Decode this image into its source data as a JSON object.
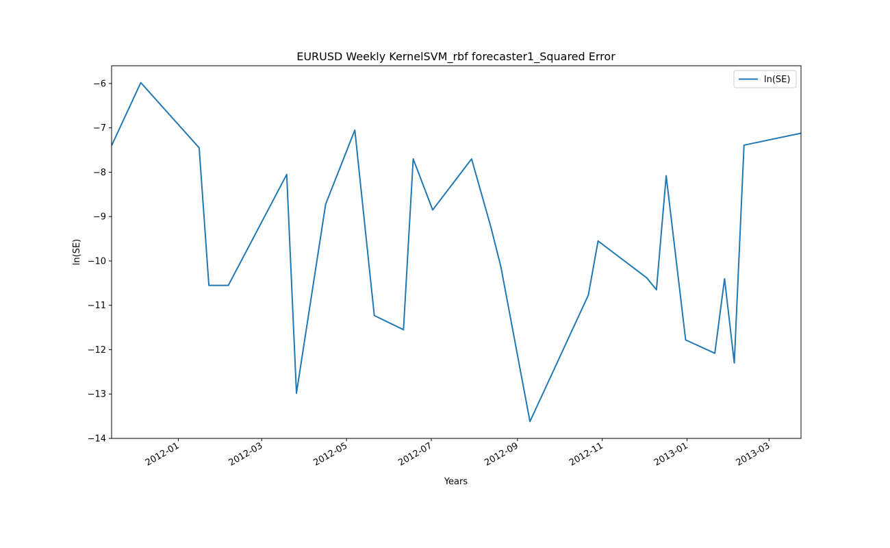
{
  "chart_data": {
    "type": "line",
    "title": "EURUSD Weekly KernelSVM_rbf forecaster1_Squared Error",
    "xlabel": "Years",
    "ylabel": "ln(SE)",
    "xlim": [
      "2011-11-14",
      "2013-03-24"
    ],
    "ylim": [
      -14,
      -5.6
    ],
    "yticks": [
      -14,
      -13,
      -12,
      -11,
      -10,
      -9,
      -8,
      -7,
      -6
    ],
    "xticks": [
      "2012-01",
      "2012-03",
      "2012-05",
      "2012-07",
      "2012-09",
      "2012-11",
      "2013-01",
      "2013-03"
    ],
    "legend": {
      "position": "top-right",
      "entries": [
        "ln(SE)"
      ]
    },
    "grid": false,
    "colors": {
      "series": "#1f77b4"
    },
    "series": [
      {
        "name": "ln(SE)",
        "x": [
          "2011-11-14",
          "2011-12-05",
          "2012-01-16",
          "2012-01-23",
          "2012-02-06",
          "2012-03-19",
          "2012-03-26",
          "2012-04-16",
          "2012-05-07",
          "2012-05-21",
          "2012-06-11",
          "2012-06-18",
          "2012-07-02",
          "2012-07-30",
          "2012-08-13",
          "2012-08-20",
          "2012-09-10",
          "2012-10-22",
          "2012-10-29",
          "2012-12-03",
          "2012-12-10",
          "2012-12-17",
          "2012-12-31",
          "2013-01-21",
          "2013-01-28",
          "2013-02-04",
          "2013-02-11",
          "2013-03-24"
        ],
        "values": [
          -7.4,
          -5.98,
          -7.45,
          -10.55,
          -10.55,
          -8.05,
          -12.98,
          -8.72,
          -7.05,
          -11.23,
          -11.55,
          -7.7,
          -8.85,
          -7.7,
          -9.25,
          -10.12,
          -13.62,
          -10.77,
          -9.55,
          -10.38,
          -10.65,
          -8.08,
          -11.78,
          -12.08,
          -10.4,
          -12.3,
          -7.39,
          -7.12
        ]
      }
    ]
  }
}
